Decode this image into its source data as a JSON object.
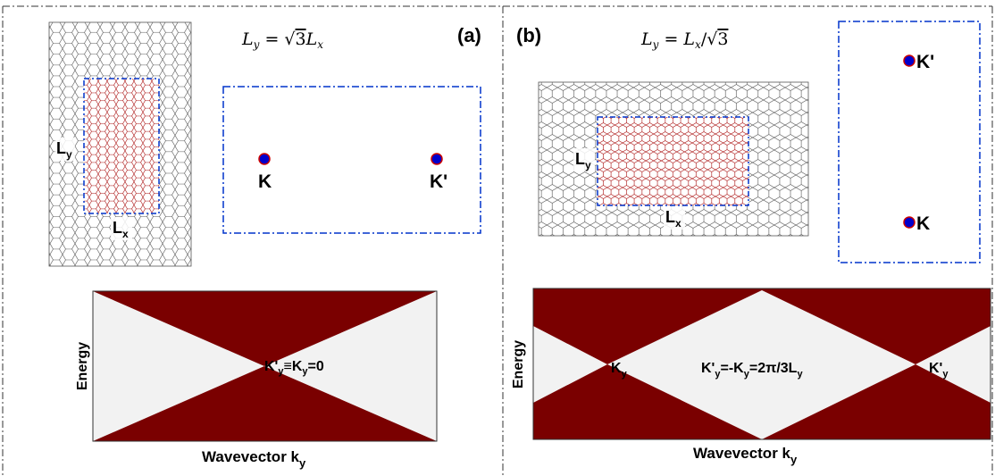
{
  "panel_a": {
    "label": "(a)",
    "relation": {
      "main": "L",
      "sub_y": "y",
      "eq": " = ",
      "sqrt": "√",
      "three": "3",
      "main2": "L",
      "sub_x": "x"
    },
    "lattice": {
      "ly": "L",
      "ly_sub": "y",
      "lx": "L",
      "lx_sub": "x"
    },
    "bz": {
      "k": "K",
      "kp": "K'"
    },
    "band": {
      "ylabel": "Energy",
      "xlabel": "Wavevector k",
      "xlabel_sub": "y",
      "annotation": {
        "a": "K'",
        "a_sub": "y",
        "b": "≡K",
        "b_sub": "y",
        "c": "=0"
      }
    }
  },
  "panel_b": {
    "label": "(b)",
    "relation": {
      "main": "L",
      "sub_y": "y",
      "eq": " = ",
      "main2": "L",
      "sub_x": "x",
      "slash": "/",
      "sqrt": "√",
      "three": "3"
    },
    "lattice": {
      "ly": "L",
      "ly_sub": "y",
      "lx": "L",
      "lx_sub": "x"
    },
    "bz": {
      "k": "K",
      "kp": "K'"
    },
    "band": {
      "ylabel": "Energy",
      "xlabel": "Wavevector k",
      "xlabel_sub": "y",
      "left_label": "K",
      "left_label_sub": "y",
      "right_label": "K'",
      "right_label_sub": "y",
      "annotation": {
        "a": "K'",
        "a_sub": "y",
        "b": "=-K",
        "b_sub": "y",
        "c": "=2π/3L",
        "c_sub": "y"
      }
    }
  },
  "colors": {
    "band_fill": "#7a0000",
    "band_gap": "#f2f2f2",
    "dirac_point": "#0000cc",
    "dirac_ring": "#cc0000",
    "dash_box": "#0033cc",
    "lattice_inner": "#aa1111",
    "lattice_outer": "#555555",
    "frame": "#333333"
  }
}
